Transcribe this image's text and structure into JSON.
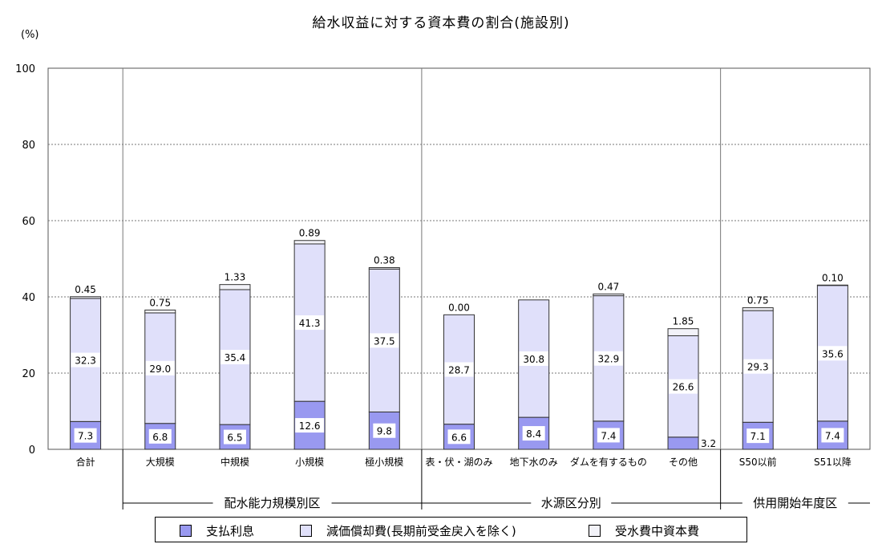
{
  "chart_data": {
    "type": "bar",
    "stacked": true,
    "title": "給水収益に対する資本費の割合(施設別)",
    "unit_label": "(%)",
    "ylim": [
      0,
      100
    ],
    "yticks": [
      0,
      20,
      40,
      60,
      80,
      100
    ],
    "grid": true,
    "categories": [
      "合計",
      "大規模",
      "中規模",
      "小規模",
      "極小規模",
      "表・伏・湖のみ",
      "地下水のみ",
      "ダムを有するもの",
      "その他",
      "S50以前",
      "S51以降"
    ],
    "series": [
      {
        "name": "支払利息",
        "color": "#9999f0",
        "values": [
          7.3,
          6.8,
          6.5,
          12.6,
          9.8,
          6.6,
          8.4,
          7.4,
          3.2,
          7.1,
          7.4
        ],
        "labels": [
          "7.3",
          "6.8",
          "6.5",
          "12.6",
          "9.8",
          "6.6",
          "8.4",
          "7.4",
          "3.2",
          "7.1",
          "7.4"
        ]
      },
      {
        "name": "減価償却費(長期前受金戻入を除く)",
        "color": "#e0e0fa",
        "values": [
          32.3,
          29.0,
          35.4,
          41.3,
          37.5,
          28.7,
          30.8,
          32.9,
          26.6,
          29.3,
          35.6
        ],
        "labels": [
          "32.3",
          "29.0",
          "35.4",
          "41.3",
          "37.5",
          "28.7",
          "30.8",
          "32.9",
          "26.6",
          "29.3",
          "35.6"
        ]
      },
      {
        "name": "受水費中資本費",
        "color": "#f2f2f8",
        "values": [
          0.45,
          0.75,
          1.33,
          0.89,
          0.38,
          0.0,
          0.0,
          0.47,
          1.85,
          0.75,
          0.1
        ],
        "labels": [
          "0.45",
          "0.75",
          "1.33",
          "0.89",
          "0.38",
          "0.00",
          "",
          "0.47",
          "1.85",
          "0.75",
          "0.10"
        ]
      }
    ],
    "groups": [
      {
        "label": "配水能力規模別区",
        "categories": [
          "大規模",
          "中規模",
          "小規模",
          "極小規模"
        ]
      },
      {
        "label": "水源区分別",
        "categories": [
          "表・伏・湖のみ",
          "地下水のみ",
          "ダムを有するもの",
          "その他"
        ]
      },
      {
        "label": "供用開始年度区",
        "categories": [
          "S50以前",
          "S51以降"
        ]
      }
    ],
    "legend_position": "bottom"
  }
}
